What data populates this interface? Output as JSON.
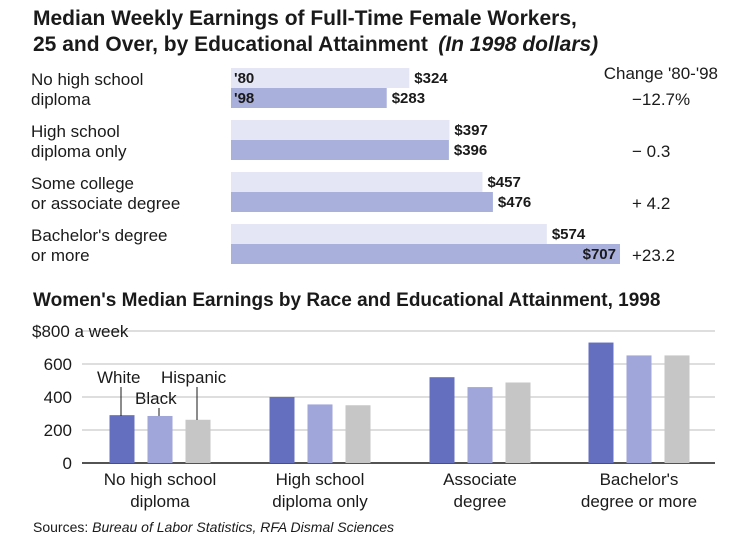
{
  "colors": {
    "bar_80": "#e4e6f5",
    "bar_98": "#a9b0dc",
    "white": "#6470bf",
    "black": "#a0a6da",
    "hispanic": "#c6c6c6",
    "grid": "#bdbdbd"
  },
  "chart_data": [
    {
      "type": "bar",
      "orientation": "horizontal",
      "title": "Median Weekly Earnings of Full-Time Female Workers,",
      "title_line2": "25 and Over, by Educational Attainment",
      "title_suffix": "(In 1998 dollars)",
      "change_header": "Change '80-'98",
      "year_labels": [
        "'80",
        "'98"
      ],
      "categories": [
        {
          "line1": "No high school",
          "line2": "diploma"
        },
        {
          "line1": "High school",
          "line2": "diploma only"
        },
        {
          "line1": "Some college",
          "line2": "or associate degree"
        },
        {
          "line1": "Bachelor's degree",
          "line2": "or more"
        }
      ],
      "series": [
        {
          "values": [
            324,
            397,
            457,
            574
          ],
          "labels": [
            "$324",
            "$397",
            "$457",
            "$574"
          ]
        },
        {
          "values": [
            283,
            396,
            476,
            707
          ],
          "labels": [
            "$283",
            "$396",
            "$476",
            "$707"
          ]
        }
      ],
      "change": [
        "−12.7%",
        "−  0.3",
        "+  4.2",
        "+23.2"
      ]
    },
    {
      "type": "bar",
      "title": "Women's Median Earnings by Race and Educational Attainment, 1998",
      "ylim": [
        0,
        800
      ],
      "yticks": [
        {
          "v": 0,
          "label": "0"
        },
        {
          "v": 200,
          "label": "200"
        },
        {
          "v": 400,
          "label": "400"
        },
        {
          "v": 600,
          "label": "600"
        },
        {
          "v": 800,
          "label": "$800 a week"
        }
      ],
      "categories": [
        {
          "line1": "No high school",
          "line2": "diploma"
        },
        {
          "line1": "High school",
          "line2": "diploma only"
        },
        {
          "line1": "Associate",
          "line2": "degree"
        },
        {
          "line1": "Bachelor's",
          "line2": "degree or more"
        }
      ],
      "series": [
        {
          "name": "White",
          "values": [
            290,
            400,
            520,
            730
          ]
        },
        {
          "name": "Black",
          "values": [
            285,
            355,
            460,
            652
          ]
        },
        {
          "name": "Hispanic",
          "values": [
            262,
            350,
            488,
            652
          ]
        }
      ]
    }
  ],
  "sources": {
    "prefix": "Sources: ",
    "names": "Bureau of Labor Statistics, RFA Dismal Sciences"
  }
}
